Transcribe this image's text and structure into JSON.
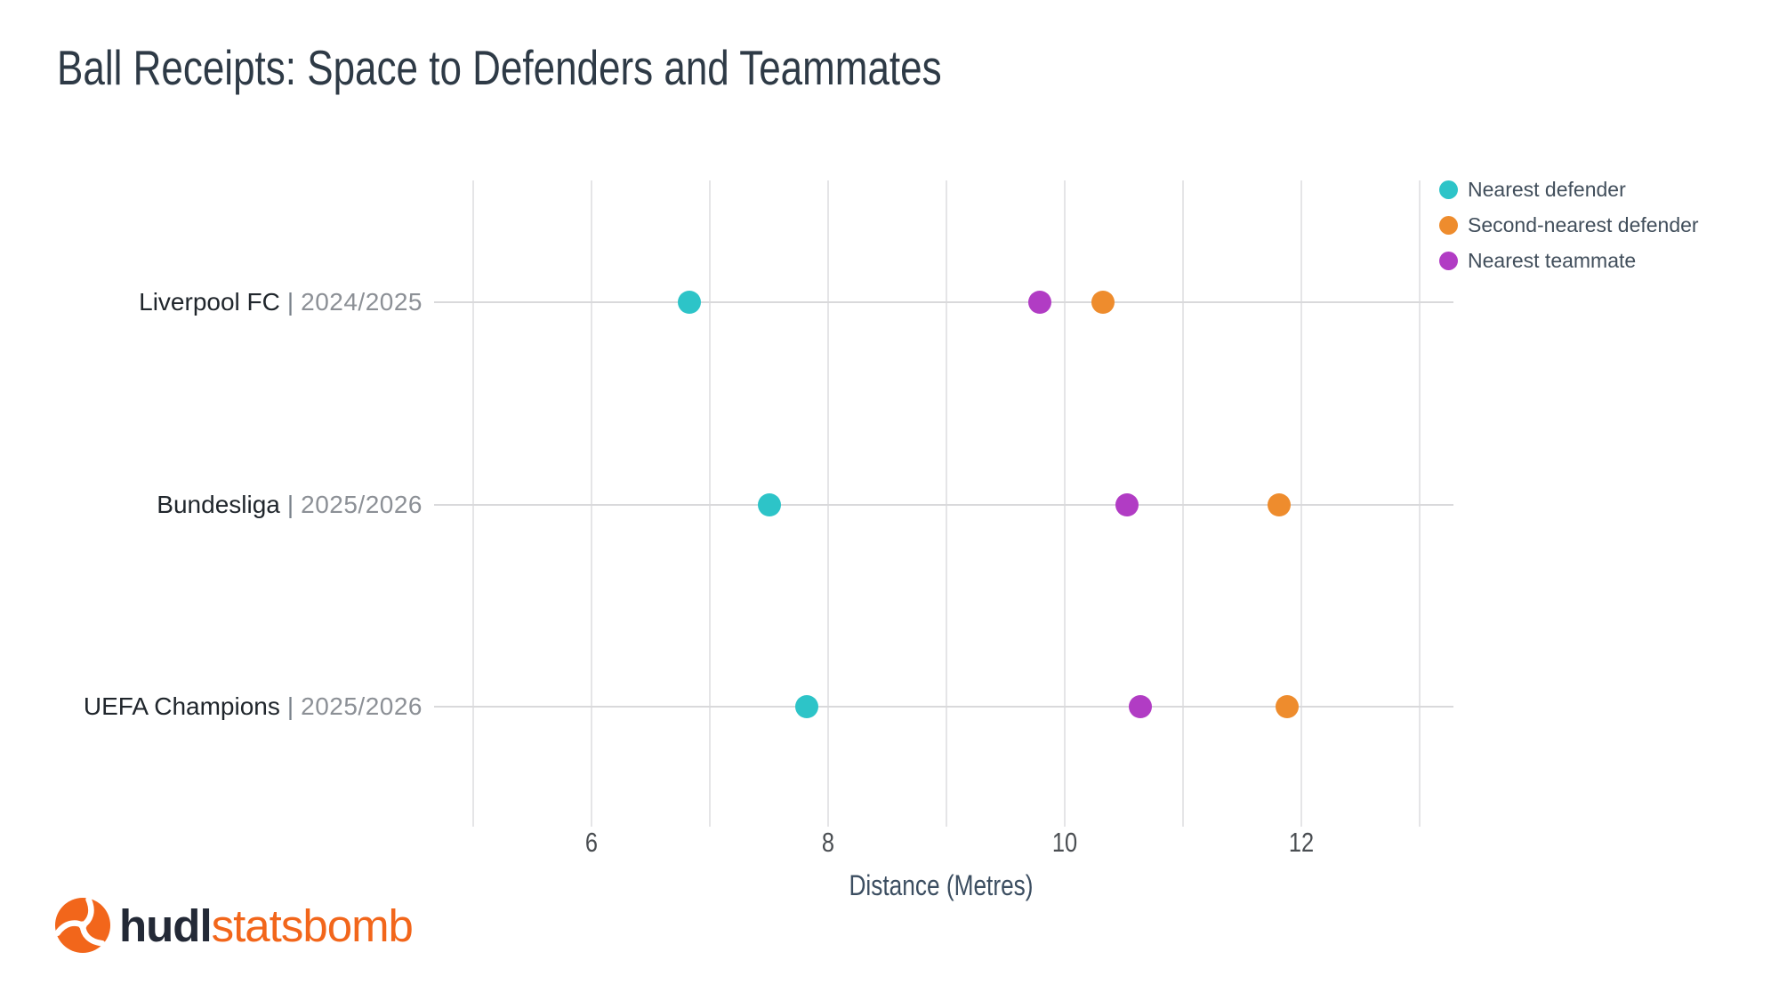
{
  "chart_data": {
    "type": "scatter",
    "variant": "horizontal-dot-plot",
    "title": "Ball Receipts: Space to Defenders and Teammates",
    "xlabel": "Distance (Metres)",
    "ylabel": "",
    "categories": [
      {
        "team": "Liverpool FC",
        "separator": "|",
        "season": "2024/2025"
      },
      {
        "team": "Bundesliga",
        "separator": "|",
        "season": "2025/2026"
      },
      {
        "team": "UEFA Champions",
        "separator": "|",
        "season": "2025/2026"
      }
    ],
    "series": [
      {
        "name": "Nearest defender",
        "color": "#2dc4c8",
        "values": [
          6.83,
          7.5,
          7.82
        ]
      },
      {
        "name": "Second-nearest defender",
        "color": "#ee8c2d",
        "values": [
          10.32,
          11.81,
          11.88
        ]
      },
      {
        "name": "Nearest teammate",
        "color": "#b13cc4",
        "values": [
          9.79,
          10.53,
          10.64
        ]
      }
    ],
    "x_ticks": [
      6,
      8,
      10,
      12
    ],
    "x_gridlines": [
      5,
      6,
      7,
      8,
      9,
      10,
      11,
      12,
      13
    ],
    "xlim": [
      4.67,
      13.3
    ],
    "grid": "vertical gridlines with horizontal category lines",
    "legend_position": "top-right"
  },
  "legend": {
    "items": [
      {
        "label": "Nearest defender",
        "color": "#2dc4c8"
      },
      {
        "label": "Second-nearest defender",
        "color": "#ee8c2d"
      },
      {
        "label": "Nearest teammate",
        "color": "#b13cc4"
      }
    ]
  },
  "logo": {
    "hudl": "hudl",
    "statsbomb": "statsbomb"
  },
  "colors": {
    "teal": "#2dc4c8",
    "orange": "#ee8c2d",
    "purple": "#b13cc4",
    "title_text": "#2e3a46",
    "gridline": "#e5e5e7",
    "category_line": "#d9d9db",
    "team_text": "#20262c",
    "season_text": "#8c9096",
    "tick_text": "#4a4e52",
    "axis_title_text": "#3c4e61",
    "legend_text": "#414e5b",
    "logo_navy": "#232936",
    "logo_orange": "#f2661b",
    "background": "#ffffff"
  }
}
